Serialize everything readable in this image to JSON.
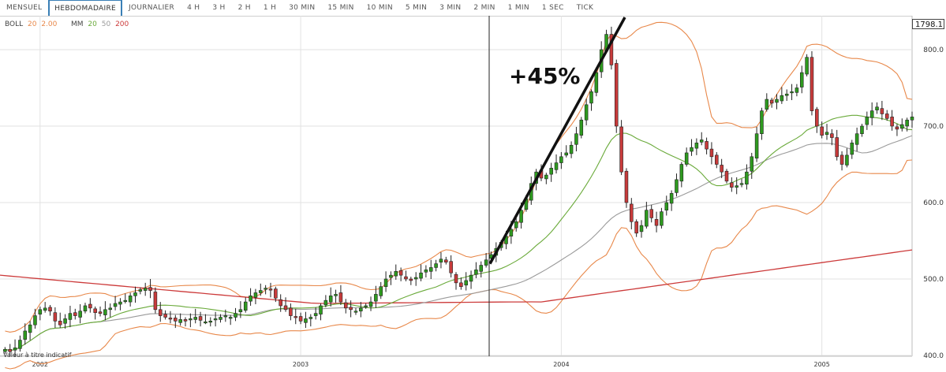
{
  "toolbar": {
    "tabs": [
      "MENSUEL",
      "HEBDOMADAIRE",
      "JOURNALIER",
      "4 H",
      "3 H",
      "2 H",
      "1 H",
      "30 MIN",
      "15 MIN",
      "10 MIN",
      "5 MIN",
      "3 MIN",
      "2 MIN",
      "1 MIN",
      "1 SEC",
      "TICK"
    ],
    "active_tab": "HEBDOMADAIRE"
  },
  "legend": {
    "boll_label": "BOLL",
    "boll_period": "20",
    "boll_dev": "2.00",
    "mm_label": "MM",
    "mm_p1": "20",
    "mm_p2": "50",
    "mm_p3": "200"
  },
  "price_box": "1798.1",
  "footnote": "Valeur à titre indicatif",
  "annotation": "+45%",
  "colors": {
    "up": "#2e9a1f",
    "down": "#c83b3b",
    "boll": "#e8884a",
    "mm20": "#6aaa3a",
    "mm50": "#9a9a9a",
    "mm200": "#cc3a3a",
    "grid": "#e2e2e2",
    "annotation_line": "#111111",
    "vertical_marker": "#222222"
  },
  "chart_data": {
    "type": "candlestick",
    "y_axis": {
      "min": 400,
      "max": 800,
      "ticks": [
        800,
        700,
        600,
        500,
        400
      ],
      "tick_labels": [
        "800.0",
        "700.0",
        "600.0",
        "500.0",
        "400.0"
      ]
    },
    "x_axis": {
      "tick_labels": [
        "2002",
        "2003",
        "2004",
        "2005"
      ],
      "tick_positions_week": [
        0,
        52,
        104,
        156
      ]
    },
    "week_range": [
      -8,
      174
    ],
    "candles_close": [
      408,
      405,
      410,
      420,
      432,
      440,
      452,
      460,
      462,
      458,
      445,
      440,
      448,
      455,
      452,
      458,
      465,
      462,
      456,
      455,
      460,
      462,
      468,
      470,
      472,
      478,
      482,
      486,
      488,
      485,
      460,
      452,
      450,
      448,
      445,
      447,
      445,
      448,
      450,
      446,
      444,
      445,
      448,
      450,
      452,
      450,
      455,
      460,
      470,
      478,
      482,
      485,
      488,
      486,
      475,
      465,
      460,
      452,
      450,
      445,
      448,
      450,
      455,
      465,
      472,
      478,
      480,
      470,
      462,
      460,
      458,
      462,
      465,
      470,
      480,
      490,
      500,
      505,
      510,
      505,
      500,
      498,
      502,
      508,
      512,
      515,
      520,
      526,
      522,
      508,
      495,
      490,
      498,
      505,
      512,
      518,
      525,
      532,
      540,
      548,
      556,
      565,
      575,
      590,
      605,
      625,
      640,
      632,
      636,
      645,
      652,
      660,
      665,
      675,
      690,
      708,
      728,
      745,
      770,
      800,
      820,
      780,
      700,
      640,
      600,
      575,
      560,
      570,
      590,
      580,
      570,
      588,
      600,
      612,
      630,
      650,
      665,
      672,
      678,
      682,
      670,
      660,
      650,
      640,
      628,
      620,
      622,
      625,
      640,
      660,
      690,
      720,
      735,
      730,
      735,
      740,
      742,
      745,
      750,
      770,
      790,
      720,
      700,
      688,
      692,
      685,
      660,
      650,
      662,
      678,
      690,
      700,
      712,
      720,
      725,
      716,
      710,
      700,
      696,
      702,
      708,
      712
    ],
    "series": [
      {
        "name": "MM 20"
      },
      {
        "name": "MM 50"
      },
      {
        "name": "MM 200"
      },
      {
        "name": "BOLL 20 2.00"
      }
    ]
  }
}
